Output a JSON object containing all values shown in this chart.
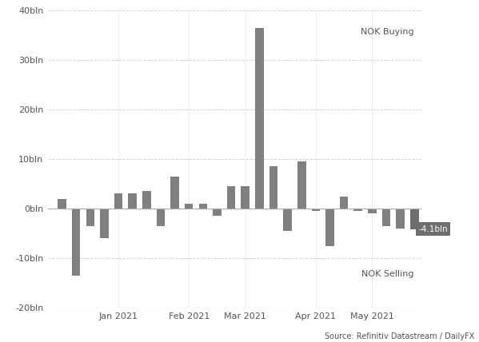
{
  "values": [
    2.0,
    -13.5,
    -3.5,
    -6.0,
    3.0,
    3.0,
    3.5,
    -3.5,
    6.5,
    1.0,
    1.0,
    -1.5,
    4.5,
    4.5,
    36.5,
    8.5,
    -4.5,
    9.5,
    -0.5,
    -7.5,
    2.5,
    -0.5,
    -1.0,
    -3.5,
    -4.0,
    -4.1
  ],
  "bar_color": "#808080",
  "last_bar_color": "#6e6e6e",
  "ylim": [
    -20,
    40
  ],
  "yticks": [
    -20,
    -10,
    0,
    10,
    20,
    30,
    40
  ],
  "ytick_labels": [
    "-20bln",
    "-10bln",
    "0bln",
    "10bln",
    "20bln",
    "30bln",
    "40bln"
  ],
  "xlabel_months": [
    "Jan 2021",
    "Feb 2021",
    "Mar 2021",
    "Apr 2021",
    "May 2021"
  ],
  "month_x_positions": [
    4.5,
    9.5,
    13.5,
    18.5,
    22.5
  ],
  "annotation_nok_buying": "NOK Buying",
  "annotation_nok_selling": "NOK Selling",
  "annotation_value": "-4.1bln",
  "source_text": "Source: Refinitiv Datastream / DailyFX",
  "background_color": "#ffffff",
  "grid_color_h": "#cccccc",
  "grid_color_v": "#cccccc",
  "zero_line_color": "#aaaaaa",
  "text_color": "#555555"
}
